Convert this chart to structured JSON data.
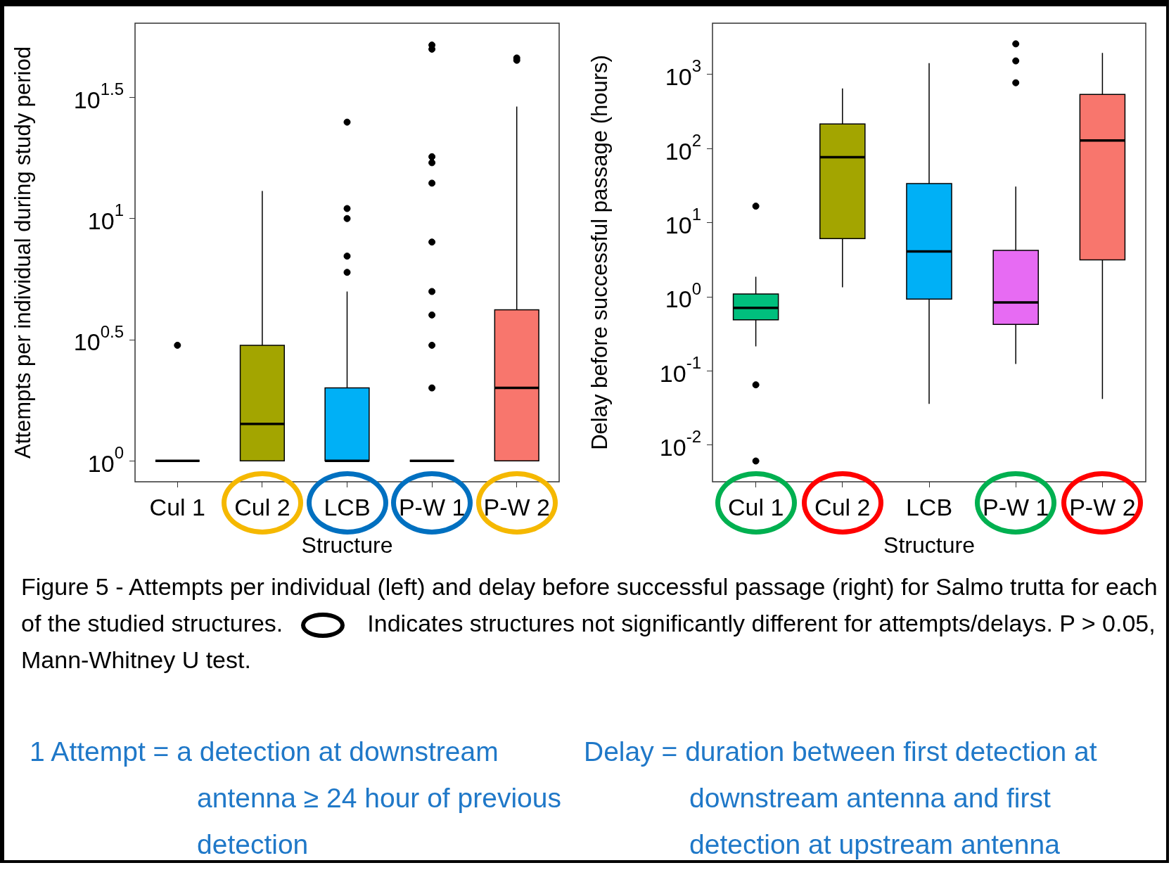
{
  "chart_data": [
    {
      "type": "box",
      "ylabel": "Attempts per individual during study period",
      "xlabel": "Structure",
      "categories": [
        "Cul 1",
        "Cul 2",
        "LCB",
        "P-W 1",
        "P-W 2"
      ],
      "colors": [
        "#000000",
        "#a3a500",
        "#00b0f6",
        "#000000",
        "#f8766d"
      ],
      "log": true,
      "ylim": [
        0.82,
        64
      ],
      "yticks": [
        {
          "value": 1,
          "label": "10$^{0}$"
        },
        {
          "value": 3.1623,
          "label": "10$^{0.5}$"
        },
        {
          "value": 10,
          "label": "10$^{1}$"
        },
        {
          "value": 31.623,
          "label": "10$^{1.5}$"
        }
      ],
      "boxes": [
        {
          "low": 1,
          "q1": 1,
          "median": 1,
          "q3": 1,
          "high": 1,
          "outliers": [
            3
          ]
        },
        {
          "low": 1,
          "q1": 1,
          "median": 1.42,
          "q3": 3,
          "high": 13
        },
        {
          "low": 1,
          "q1": 1,
          "median": 1,
          "q3": 2,
          "high": 5,
          "outliers": [
            6,
            7,
            10,
            11,
            25
          ]
        },
        {
          "low": 1,
          "q1": 1,
          "median": 1,
          "q3": 1,
          "high": 1,
          "outliers": [
            2,
            3,
            4,
            5,
            8,
            14,
            17,
            18,
            50,
            52
          ]
        },
        {
          "low": 1,
          "q1": 1,
          "median": 2,
          "q3": 4.2,
          "high": 29,
          "outliers": [
            45,
            46
          ]
        }
      ],
      "annotations": [
        "Figure 5 - Attempts per individual (left) and delay before successful passage (right) for Salmo trutta for each of the studied structures.",
        "Indicates structures not significantly different for attempts/delays. P > 0.05, Mann-Whitney U test.",
        "1 Attempt = a detection at downstream antenna ≥ 24 hour of previous detection"
      ]
    },
    {
      "type": "box",
      "ylabel": "Delay before successful passage (hours)",
      "xlabel": "Structure",
      "categories": [
        "Cul 1",
        "Cul 2",
        "LCB",
        "P-W 1",
        "P-W 2"
      ],
      "colors": [
        "#00bf7d",
        "#a3a500",
        "#00b0f6",
        "#e76bf3",
        "#f8766d"
      ],
      "log": true,
      "ylim": [
        0.0032,
        4900
      ],
      "yticks": [
        {
          "value": 0.01,
          "label": "10$^{-2}$"
        },
        {
          "value": 0.1,
          "label": "10$^{-1}$"
        },
        {
          "value": 1,
          "label": "10$^{0}$"
        },
        {
          "value": 10,
          "label": "10$^{1}$"
        },
        {
          "value": 100,
          "label": "10$^{2}$"
        },
        {
          "value": 1000,
          "label": "10$^{3}$"
        }
      ],
      "boxes": [
        {
          "low": 0.215,
          "q1": 0.49,
          "median": 0.71,
          "q3": 1.09,
          "high": 1.86,
          "outliers": [
            0.0061,
            0.065,
            16.7
          ]
        },
        {
          "low": 1.34,
          "q1": 6.1,
          "median": 76.5,
          "q3": 215,
          "high": 646
        },
        {
          "low": 0.036,
          "q1": 0.93,
          "median": 4.1,
          "q3": 33.7,
          "high": 1420
        },
        {
          "low": 0.124,
          "q1": 0.425,
          "median": 0.84,
          "q3": 4.23,
          "high": 30.7,
          "outliers": [
            771,
            1520,
            2580
          ]
        },
        {
          "low": 0.042,
          "q1": 3.15,
          "median": 128,
          "q3": 536,
          "high": 1950
        }
      ],
      "annotations": [
        "Delay = duration between first detection at downstream antenna and first detection at upstream antenna"
      ]
    }
  ]
}
